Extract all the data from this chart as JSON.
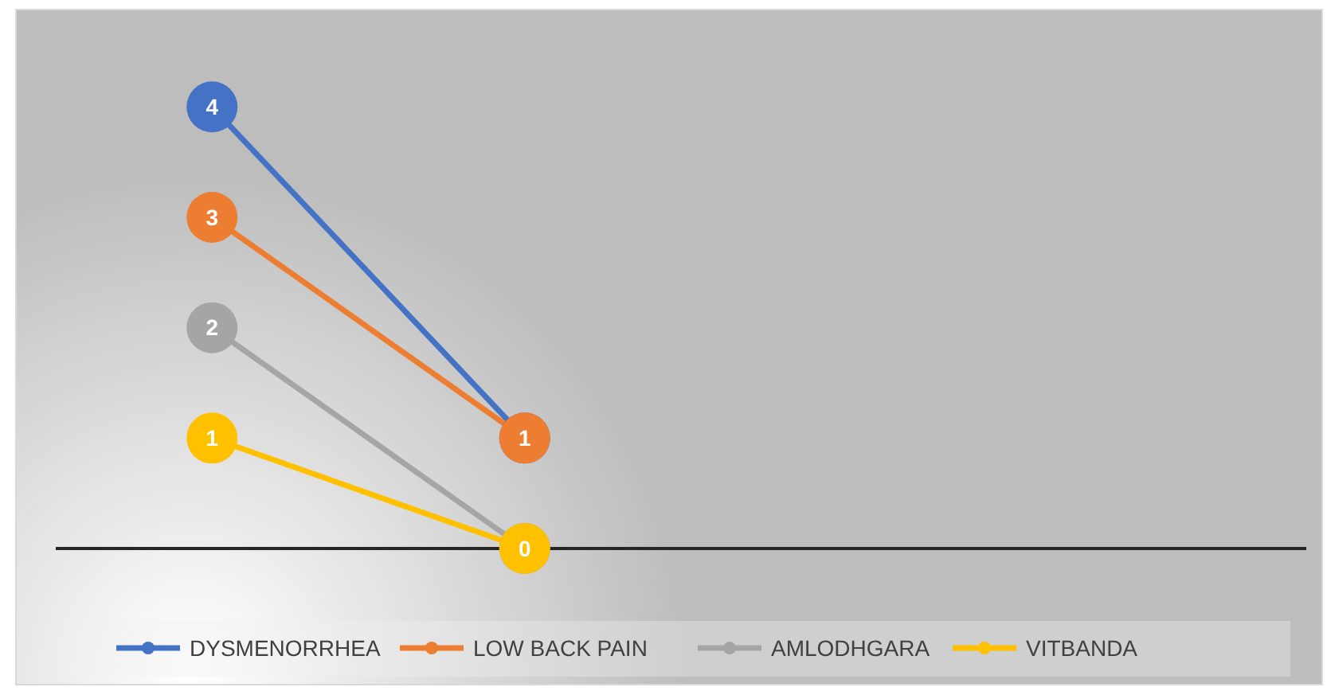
{
  "chart_data": {
    "type": "line",
    "categories": [
      null,
      null,
      null,
      null
    ],
    "series": [
      {
        "name": "DYSMENORRHEA",
        "color": "#4472c4",
        "values": [
          4,
          1,
          null,
          null
        ],
        "value_labels": [
          "4",
          null,
          null,
          null
        ]
      },
      {
        "name": "LOW BACK PAIN",
        "color": "#ed7d31",
        "values": [
          3,
          1,
          null,
          null
        ],
        "value_labels": [
          "3",
          "1",
          null,
          null
        ]
      },
      {
        "name": "AMLODHGARA",
        "color": "#a5a5a5",
        "values": [
          2,
          0,
          null,
          null
        ],
        "value_labels": [
          "2",
          null,
          null,
          null
        ]
      },
      {
        "name": "VITBANDA",
        "color": "#ffc000",
        "values": [
          1,
          0,
          null,
          null
        ],
        "value_labels": [
          "1",
          "0",
          null,
          null
        ]
      }
    ],
    "marker": "circle",
    "legend": "bottom",
    "grid": false
  }
}
